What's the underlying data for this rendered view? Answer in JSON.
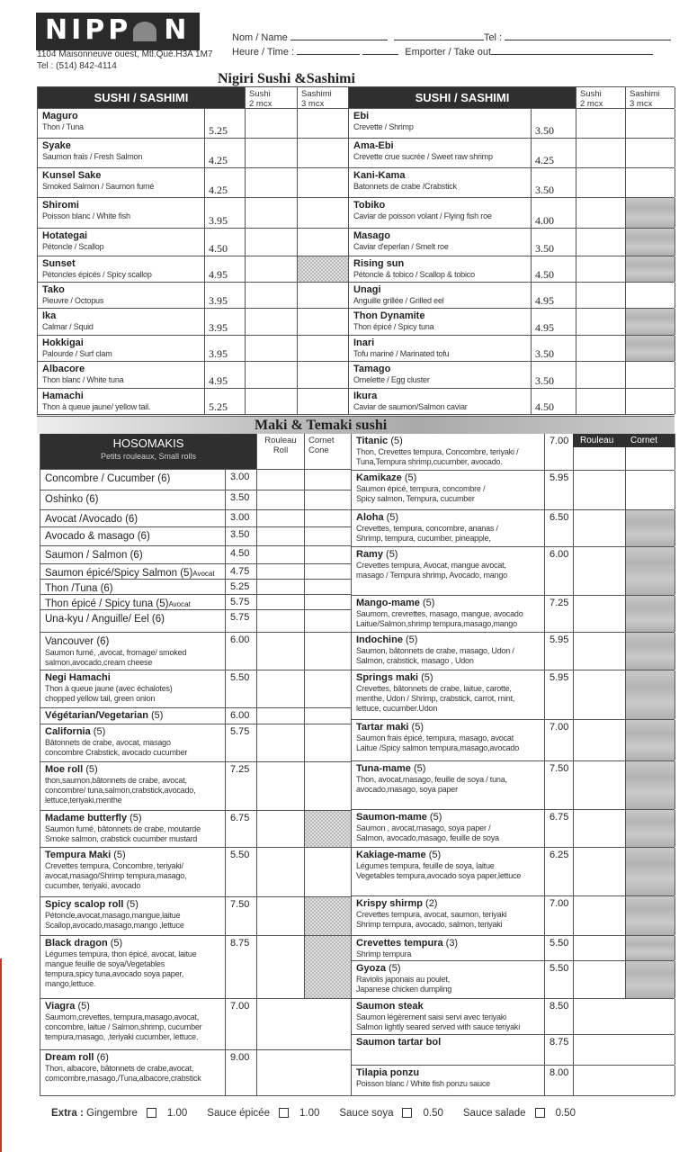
{
  "header": {
    "logo": "NIPPON",
    "address": "1104 Maisonneuve ouest, Mtl.Qué.H3A 1M7",
    "tel": "Tel : (514) 842-4114",
    "form": {
      "name_label": "Nom / Name",
      "tel_label": "Tel :",
      "time_label": "Heure / Time :",
      "takeout_label": "Emporter /  Take out"
    }
  },
  "nigiri": {
    "title": "Nigiri Sushi &Sashimi",
    "header": {
      "section": "SUSHI / SASHIMI",
      "sushi": "Sushi",
      "sushi_sub": "2 mcx",
      "sashimi": "Sashimi",
      "sashimi_sub": "3 mcx"
    },
    "left": [
      {
        "name": "Maguro",
        "desc": "Thon  / Tuna",
        "price": "5.25"
      },
      {
        "name": "Syake",
        "desc": "Saumon frais / Fresh Salmon",
        "price": "4.25"
      },
      {
        "name": "Kunsel Sake",
        "desc": "Smoked Salmon / Saumon fumé",
        "price": "4.25"
      },
      {
        "name": "Shiromi",
        "desc": "Poisson blanc / White fish",
        "price": "3.95"
      },
      {
        "name": "Hotategai",
        "desc": "Pétoncle / Scallop",
        "price": "4.50"
      },
      {
        "name": "Sunset",
        "desc": "Pétoncles épicés / Spicy scallop",
        "price": "4.95",
        "shaded": "sashimi"
      },
      {
        "name": "Tako",
        "desc": "Pieuvre /  Octopus",
        "price": "3.95"
      },
      {
        "name": "Ika",
        "desc": "Calmar / Squid",
        "price": "3.95"
      },
      {
        "name": "Hokkigai",
        "desc": "Palourde /  Surf clam",
        "price": "3.95"
      },
      {
        "name": "Albacore",
        "desc": "Thon blanc /  White tuna",
        "price": "4.95"
      },
      {
        "name": "Hamachi",
        "desc": "Thon à queue jaune/ yellow tail.",
        "price": "5.25"
      }
    ],
    "right": [
      {
        "name": "Ebi",
        "desc": "Crevette / Shrimp",
        "price": "3.50"
      },
      {
        "name": "Ama-Ebi",
        "desc": "Crevette crue sucrée / Sweet raw shrimp",
        "price": "4.25"
      },
      {
        "name": "Kani-Kama",
        "desc": "Batonnets de crabe /Crabstick",
        "price": "3.50"
      },
      {
        "name": "Tobiko",
        "desc": "Caviar de poisson volant / Flying fish roe",
        "price": "4.00",
        "shaded": "sashimi"
      },
      {
        "name": "Masago",
        "desc": "Caviar d'eperlan / Smelt roe",
        "price": "3.50",
        "shaded": "sashimi"
      },
      {
        "name": "Rising sun",
        "desc": "Pétoncle & tobico / Scallop & tobico",
        "price": "4.50",
        "shaded": "sashimi"
      },
      {
        "name": "Unagi",
        "desc": "Anguille grillée / Grilled eel",
        "price": "4.95"
      },
      {
        "name": "Thon Dynamite",
        "desc": "Thon épicé / Spicy tuna",
        "price": "4.95",
        "shaded": "sashimi"
      },
      {
        "name": "Inari",
        "desc": "Tofu mariné / Marinated tofu",
        "price": "3.50",
        "shaded": "sashimi"
      },
      {
        "name": "Tamago",
        "desc": "Omelette / Egg cluster",
        "price": "3.50"
      },
      {
        "name": "Ikura",
        "desc": "Caviar de saumon/Salmon caviar",
        "price": "4.50"
      }
    ]
  },
  "maki": {
    "title": "Maki & Temaki sushi",
    "left_header": {
      "title": "HOSOMAKIS",
      "subtitle": "Petits rouleaux, Small rolls",
      "roll": "Rouleau",
      "roll_sub": "Roll",
      "cone": "Cornet",
      "cone_sub": "Cone"
    },
    "right_header": {
      "roll": "Rouleau",
      "cone": "Cornet"
    },
    "left": [
      {
        "name": "Concombre / Cucumber (6)",
        "plain": true,
        "price": "3.00"
      },
      {
        "name": "Oshinko (6)",
        "plain": true,
        "price": "3.50"
      },
      {
        "name": "Avocat /Avocado (6)",
        "plain": true,
        "price": "3.00"
      },
      {
        "name": "Avocado & masago (6)",
        "plain": true,
        "price": "3.50"
      },
      {
        "name": "Saumon / Salmon (6)",
        "plain": true,
        "price": "4.50"
      },
      {
        "name": "Saumon épicé/Spicy Salmon (5)",
        "suffix": "Avocat",
        "plain": true,
        "price": "4.75"
      },
      {
        "name": "Thon /Tuna (6)",
        "plain": true,
        "price": "5.25"
      },
      {
        "name": "Thon épicé / Spicy tuna (5)",
        "suffix": "Avocat",
        "plain": true,
        "price": "5.75"
      },
      {
        "name": "Una-kyu  / Anguille/ Eel (6)",
        "plain": true,
        "price": "5.75"
      },
      {
        "name": "Vancouver (6)",
        "plain": true,
        "desc": [
          "Saumon fumé, ,avocat, fromage/ smoked",
          "salmon,avocado,cream cheese"
        ],
        "price": "6.00"
      },
      {
        "name": "Negi Hamachi",
        "desc": [
          "Thon à queue jaune (avec échalotes)",
          "chopped yellow tail, green onion"
        ],
        "price": "5.50"
      },
      {
        "name": "Végétarian/Vegetarian",
        "count": "(5)",
        "price": "6.00"
      },
      {
        "name": "California",
        "count": "   (5)",
        "desc": [
          "Bâtonnets de crabe, avocat, masago",
          "concombre Crabstick, avocado cucumber"
        ],
        "price": "5.75"
      },
      {
        "name": "Moe roll",
        "count": "(5)",
        "desc": [
          "thon,saumon,bâtonnets de crabe, avocat,",
          "concombre/ tuna,salmon,crabstick,avocado,",
          "lettuce,teriyaki,menthe"
        ],
        "price": "7.25"
      },
      {
        "name": "Madame butterfly",
        "count": "(5)",
        "desc": [
          "Saumon fumé, bâtonnets de crabe, moutarde",
          "Smoke salmon, crabstick cucumber mustard"
        ],
        "price": "6.75",
        "shaded": "cone"
      },
      {
        "name": "Tempura Maki",
        "count": "(5)",
        "desc": [
          "Crevettes tempura, Concombre, teriyaki/",
          "avocat,masago/Shrimp tempura,masago,",
          "cucumber, teriyaki, avocado"
        ],
        "price": "5.50"
      },
      {
        "name": "Spicy scalop roll",
        "count": "(5)",
        "desc": [
          "Pétoncle,avocat,masago,mangue,laitue",
          "Scallop,avocado,masago,mango ,lettuce"
        ],
        "price": "7.50",
        "shaded": "cone"
      },
      {
        "name": "Black dragon",
        "count": "(5)",
        "desc": [
          "Légumes tempura, thon épicé, avocat, laitue",
          "mangue feuille de soya/Vegetables",
          "tempura,spicy tuna,avocado soya paper,",
          "mango,lettuce."
        ],
        "price": "8.75",
        "shaded": "cone"
      },
      {
        "name": "Viagra",
        "count": "(5)",
        "desc": [
          "Saumom,crevettes, tempura,masago,avocat,",
          "concombre, laitue / Salmon,shrimp, cucumber",
          "tempura,masago, ,teriyaki cucumber, lettuce."
        ],
        "price": "7.00",
        "merged": true
      },
      {
        "name": "Dream roll",
        "count": "(6)",
        "desc": [
          "Thon, albacore, bâtonnets de crabe,avocat,",
          "comcombre,masago,/Tuna,albacore,crabstick"
        ],
        "price": "9.00",
        "merged": true
      }
    ],
    "right": [
      {
        "name": "Titanic",
        "count": "(5)",
        "desc": [
          "Thon, Crevettes tempura, Concombre, teriyaki /",
          "Tuna,Tempura shrimp,cucumber, avocado."
        ],
        "price": "7.00"
      },
      {
        "name": "Kamikaze",
        "count": "(5)",
        "desc": [
          "Saumon épicé, tempura, concombre /",
          "Spicy salmon, Tempura, cucumber"
        ],
        "price": "5.95"
      },
      {
        "name": "Aloha",
        "count": "(5)",
        "desc": [
          "Crevettes, tempura, concombre, ananas /",
          "Shrimp, tempura, cucumber, pineapple,"
        ],
        "price": "6.50",
        "shaded": "cone"
      },
      {
        "name": "Ramy",
        "count": "(5)",
        "desc": [
          "Crevettes tempura, Avocat, mangue avocat,",
          "masago / Tempura shrimp, Avocado, mango"
        ],
        "price": "6.00",
        "shaded": "cone"
      },
      {
        "name": "Mango-mame",
        "count": "(5)",
        "desc": [
          "Saumom, crevrettes, masago, mangue, avocado",
          "Laitue/Salmon,shrimp tempura,masago,mango"
        ],
        "price": "7.25",
        "shaded": "cone"
      },
      {
        "name": "Indochine",
        "count": "(5)",
        "desc": [
          "Saumon, bâtonnets de crabe, masago, Udon /",
          "Salmon, crabstick, masago , Udon"
        ],
        "price": "5.95",
        "shaded": "cone"
      },
      {
        "name": "Springs maki",
        "count": "(5)",
        "desc": [
          "Crevettes, bâtonnets de crabe, laitue, carotte,",
          "menthe, Udon / Shrimp, crabstick, carrot, mint,",
          "lettuce, cucumber.Udon"
        ],
        "price": "5.95",
        "shaded": "cone"
      },
      {
        "name": "Tartar maki",
        "count": "(5)",
        "desc": [
          "Saumon frais épicé, tempura, masago, avocat",
          "Laitue /Spicy  salmon tempura,masago,avocado"
        ],
        "price": "7.00",
        "shaded": "cone"
      },
      {
        "name": "Tuna-mame",
        "count": "(5)",
        "desc": [
          "Thon, avocat,masago, feuille de soya / tuna,",
          "avocado,masago, soya paper"
        ],
        "price": "7.50",
        "shaded": "cone"
      },
      {
        "name": "Saumon-mame",
        "count": "(5)",
        "desc": [
          "Saumon , avocat,masago, soya paper /",
          "Salmon, avocado,masago, feuille de soya"
        ],
        "price": "6.75",
        "shaded": "cone"
      },
      {
        "name": "Kakiage-mame",
        "count": "(5)",
        "desc": [
          "Légumes tempura, feuille de soya, laitue",
          "Vegetables tempura,avocado soya paper,lettuce"
        ],
        "price": "6.25",
        "shaded": "cone"
      },
      {
        "name": "Krispy shirmp",
        "count": "(2)",
        "desc": [
          "Crevettes tempura, avocat, saumon, teriyaki",
          "Shrimp tempura, avocado, salmon, teriyaki"
        ],
        "price": "7.00",
        "shaded": "cone"
      },
      {
        "name": "Crevettes tempura",
        "count": "(3)",
        "desc": [
          "Shrimp tempura"
        ],
        "price": "5.50",
        "shaded": "cone"
      },
      {
        "name": "Gyoza",
        "count": "(5)",
        "desc": [
          " Raviolis japonais au poulet,",
          " Japanese chicken dumpling"
        ],
        "price": "5.50",
        "shaded": "cone"
      },
      {
        "name": "Saumon steak",
        "desc": [
          "Saumon légèrement saisi servi avec teriyaki",
          "Salmon lightly seared served with sauce teriyaki"
        ],
        "price": "8.50",
        "merged": true
      },
      {
        "name": "Saumon tartar bol",
        "price": "8.75",
        "merged": true
      },
      {
        "name": "Tilapia ponzu",
        "desc": [
          "Poisson blanc / White fish  ponzu sauce"
        ],
        "price": "8.00",
        "merged": true
      }
    ]
  },
  "extras": {
    "label": "Extra :",
    "items": [
      {
        "name": "Gingembre",
        "price": "1.00"
      },
      {
        "name": "Sauce épicée",
        "price": "1.00"
      },
      {
        "name": "Sauce soya",
        "price": "0.50"
      },
      {
        "name": "Sauce salade",
        "price": "0.50"
      }
    ]
  },
  "colors": {
    "header_dark": "#2f2f2f",
    "shade": "#b8b8b8"
  }
}
